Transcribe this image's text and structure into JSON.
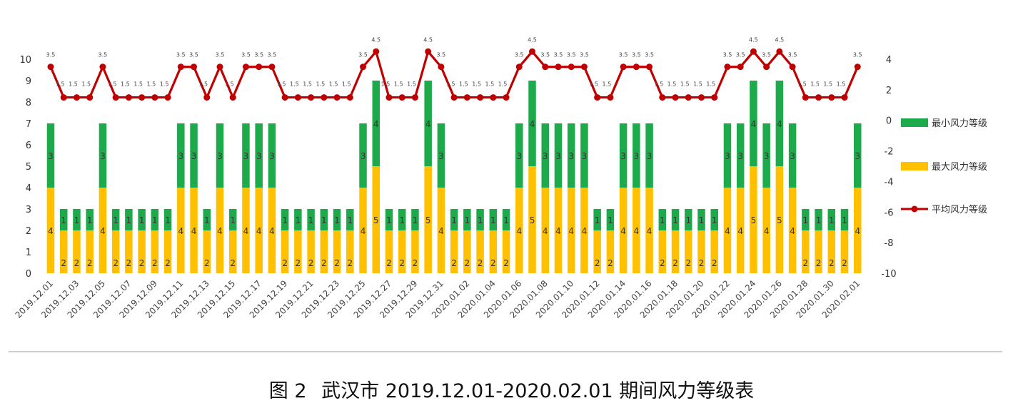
{
  "chart_data": {
    "type": "bar",
    "stacked": true,
    "categories": [
      "2019.12.01",
      "2019.12.02",
      "2019.12.03",
      "2019.12.04",
      "2019.12.05",
      "2019.12.06",
      "2019.12.07",
      "2019.12.08",
      "2019.12.09",
      "2019.12.10",
      "2019.12.11",
      "2019.12.12",
      "2019.12.13",
      "2019.12.14",
      "2019.12.15",
      "2019.12.16",
      "2019.12.17",
      "2019.12.18",
      "2019.12.19",
      "2019.12.20",
      "2019.12.21",
      "2019.12.22",
      "2019.12.23",
      "2019.12.24",
      "2019.12.25",
      "2019.12.26",
      "2019.12.27",
      "2019.12.28",
      "2019.12.29",
      "2019.12.30",
      "2019.12.31",
      "2020.01.01",
      "2020.01.02",
      "2020.01.03",
      "2020.01.04",
      "2020.01.05",
      "2020.01.06",
      "2020.01.07",
      "2020.01.08",
      "2020.01.09",
      "2020.01.10",
      "2020.01.11",
      "2020.01.12",
      "2020.01.13",
      "2020.01.14",
      "2020.01.15",
      "2020.01.16",
      "2020.01.17",
      "2020.01.18",
      "2020.01.19",
      "2020.01.20",
      "2020.01.21",
      "2020.01.22",
      "2020.01.23",
      "2020.01.24",
      "2020.01.25",
      "2020.01.26",
      "2020.01.27",
      "2020.01.28",
      "2020.01.29",
      "2020.01.30",
      "2020.01.31",
      "2020.02.01"
    ],
    "series": [
      {
        "name": "最大风力等级",
        "color": "#FFC000",
        "axis": "left",
        "kind": "bar",
        "values": [
          4,
          2,
          2,
          2,
          4,
          2,
          2,
          2,
          2,
          2,
          4,
          4,
          2,
          4,
          2,
          4,
          4,
          4,
          2,
          2,
          2,
          2,
          2,
          2,
          4,
          5,
          2,
          2,
          2,
          5,
          4,
          2,
          2,
          2,
          2,
          2,
          4,
          5,
          4,
          4,
          4,
          4,
          2,
          2,
          4,
          4,
          4,
          2,
          2,
          2,
          2,
          2,
          4,
          4,
          5,
          4,
          5,
          4,
          2,
          2,
          2,
          2,
          4
        ]
      },
      {
        "name": "最小风力等级",
        "color": "#1DAA4B",
        "axis": "left",
        "kind": "bar",
        "values": [
          3,
          1,
          1,
          1,
          3,
          1,
          1,
          1,
          1,
          1,
          3,
          3,
          1,
          3,
          1,
          3,
          3,
          3,
          1,
          1,
          1,
          1,
          1,
          1,
          3,
          4,
          1,
          1,
          1,
          4,
          3,
          1,
          1,
          1,
          1,
          1,
          3,
          4,
          3,
          3,
          3,
          3,
          1,
          1,
          3,
          3,
          3,
          1,
          1,
          1,
          1,
          1,
          3,
          3,
          4,
          3,
          4,
          3,
          1,
          1,
          1,
          1,
          3
        ]
      },
      {
        "name": "平均风力等级",
        "color": "#C00000",
        "axis": "right",
        "kind": "line",
        "values": [
          3.5,
          1.5,
          1.5,
          1.5,
          3.5,
          1.5,
          1.5,
          1.5,
          1.5,
          1.5,
          3.5,
          3.5,
          1.5,
          3.5,
          1.5,
          3.5,
          3.5,
          3.5,
          1.5,
          1.5,
          1.5,
          1.5,
          1.5,
          1.5,
          3.5,
          4.5,
          1.5,
          1.5,
          1.5,
          4.5,
          3.5,
          1.5,
          1.5,
          1.5,
          1.5,
          1.5,
          3.5,
          4.5,
          3.5,
          3.5,
          3.5,
          3.5,
          1.5,
          1.5,
          3.5,
          3.5,
          3.5,
          1.5,
          1.5,
          1.5,
          1.5,
          1.5,
          3.5,
          3.5,
          4.5,
          3.5,
          4.5,
          3.5,
          1.5,
          1.5,
          1.5,
          1.5,
          3.5
        ]
      }
    ],
    "y_left": {
      "range": [
        0,
        10
      ],
      "ticks": [
        "0",
        "1",
        "2",
        "3",
        "4",
        "5",
        "6",
        "7",
        "8",
        "9",
        "10"
      ]
    },
    "y_right": {
      "range": [
        -10,
        4
      ],
      "ticks": [
        "-10",
        "-8",
        "-6",
        "-4",
        "-2",
        "0",
        "2",
        "4"
      ]
    },
    "x_tick_every": 2,
    "legend": {
      "position": "right"
    },
    "grid": false,
    "caption": {
      "label": "图 2",
      "text": "武汉市 2019.12.01-2020.02.01 期间风力等级表"
    }
  }
}
